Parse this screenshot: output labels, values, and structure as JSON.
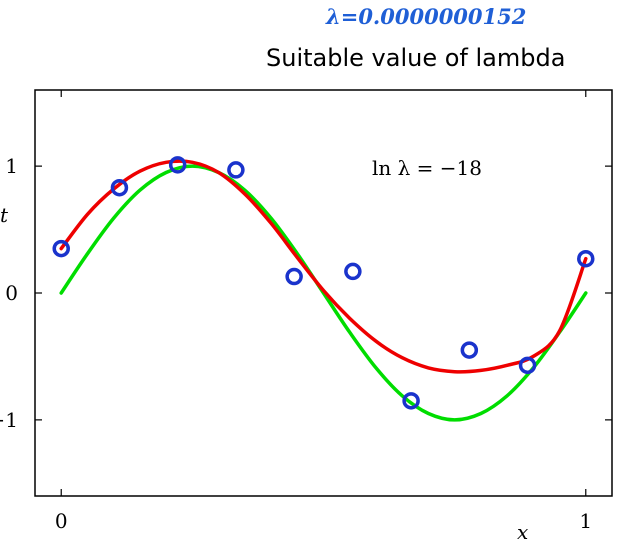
{
  "header": {
    "lambda_value": "λ=0.0000000152",
    "subtitle": "Suitable value of lambda"
  },
  "chart_data": {
    "type": "line",
    "xlabel": "x",
    "ylabel": "t",
    "xlim": [
      -0.05,
      1.05
    ],
    "ylim": [
      -1.6,
      1.6
    ],
    "x_ticks": [
      0,
      1
    ],
    "x_tick_labels": [
      "0",
      "1"
    ],
    "y_ticks": [
      -1,
      0,
      1
    ],
    "y_tick_labels": [
      "−1",
      "0",
      "1"
    ],
    "grid": false,
    "annotation": "ln λ = −18",
    "colors": {
      "true_curve": "#00dd00",
      "fit_curve": "#ee0000",
      "points": "#1a33cc"
    },
    "series": [
      {
        "type": "scatter",
        "x": [
          0,
          0.111,
          0.222,
          0.333,
          0.444,
          0.556,
          0.667,
          0.778,
          0.889,
          1.0
        ],
        "y": [
          0.35,
          0.83,
          1.01,
          0.97,
          0.13,
          0.17,
          -0.85,
          -0.45,
          -0.57,
          0.27
        ]
      },
      {
        "type": "line",
        "x": [
          0,
          0.05,
          0.1,
          0.15,
          0.2,
          0.25,
          0.3,
          0.35,
          0.4,
          0.45,
          0.5,
          0.55,
          0.6,
          0.65,
          0.7,
          0.75,
          0.8,
          0.85,
          0.9,
          0.95,
          1.0
        ],
        "y": [
          0,
          0.31,
          0.59,
          0.81,
          0.95,
          1.0,
          0.95,
          0.81,
          0.59,
          0.31,
          0,
          -0.31,
          -0.59,
          -0.81,
          -0.95,
          -1.0,
          -0.95,
          -0.81,
          -0.59,
          -0.31,
          0
        ]
      },
      {
        "type": "line",
        "x": [
          0,
          0.05,
          0.1,
          0.15,
          0.2,
          0.25,
          0.3,
          0.35,
          0.4,
          0.45,
          0.5,
          0.55,
          0.6,
          0.65,
          0.7,
          0.75,
          0.8,
          0.85,
          0.9,
          0.95,
          1.0
        ],
        "y": [
          0.35,
          0.62,
          0.82,
          0.96,
          1.03,
          1.03,
          0.95,
          0.78,
          0.55,
          0.28,
          0.02,
          -0.2,
          -0.38,
          -0.51,
          -0.59,
          -0.62,
          -0.61,
          -0.57,
          -0.5,
          -0.3,
          0.27
        ]
      }
    ]
  }
}
